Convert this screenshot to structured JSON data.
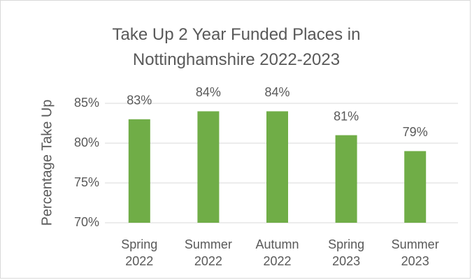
{
  "chart_data": {
    "type": "bar",
    "title": "Take Up 2 Year Funded Places in Nottinghamshire 2022-2023",
    "y_label": "Percentage Take Up",
    "categories": [
      "Spring 2022",
      "Summer 2022",
      "Autumn 2022",
      "Spring 2023",
      "Summer 2023"
    ],
    "values": [
      83,
      84,
      84,
      81,
      79
    ],
    "value_labels": [
      "83%",
      "84%",
      "84%",
      "81%",
      "79%"
    ],
    "color": "#70ad47",
    "ylim": [
      70,
      85
    ],
    "yticks": [
      {
        "value": 70,
        "label": "70%"
      },
      {
        "value": 75,
        "label": "75%"
      },
      {
        "value": 80,
        "label": "80%"
      },
      {
        "value": 85,
        "label": "85%"
      }
    ],
    "grid": true
  }
}
